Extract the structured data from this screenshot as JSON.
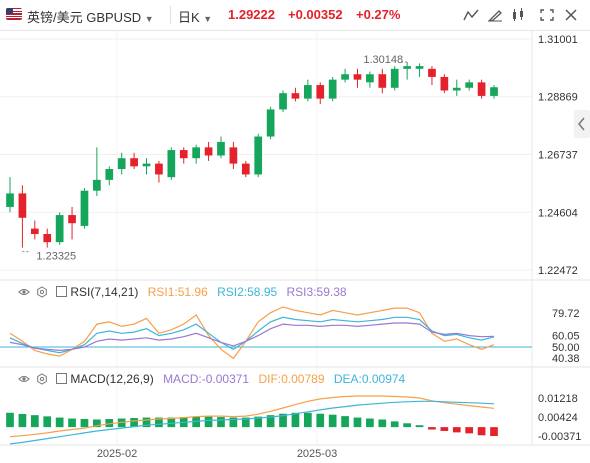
{
  "header": {
    "symbol": "英镑/美元 GBPUSD",
    "timeframe": "日K",
    "last_price": "1.29222",
    "change": "+0.00352",
    "change_pct": "+0.27%"
  },
  "colors": {
    "up": "#15a55b",
    "down": "#e4222b",
    "rsi1": "#f5a04a",
    "rsi2": "#3fb5d8",
    "rsi3": "#9a78d2",
    "diff": "#f5a04a",
    "dea": "#3fb5d8"
  },
  "icons": [
    "flag-icon",
    "dropdown-caret-icon",
    "indicator-icon",
    "draw-icon",
    "settings-icon",
    "candlestick-type-icon",
    "fullscreen-icon",
    "close-icon",
    "collapse-panel-icon",
    "eye-icon",
    "gear-icon"
  ],
  "price_axis": [
    "1.31001",
    "1.28869",
    "1.26737",
    "1.24604",
    "1.22472"
  ],
  "annotations": {
    "high": "1.30148",
    "low": "1.23325"
  },
  "x_axis": [
    "2025-02",
    "2025-03"
  ],
  "rsi": {
    "title": "RSI(7,14,21)",
    "rsi1": "RSI1:51.96",
    "rsi2": "RSI2:58.95",
    "rsi3": "RSI3:59.38",
    "axis": [
      "79.72",
      "60.05",
      "50.00",
      "40.38"
    ]
  },
  "macd": {
    "title": "MACD(12,26,9)",
    "macd": "MACD:-0.00371",
    "dif": "DIF:0.00789",
    "dea": "DEA:0.00974",
    "axis": [
      "0.01218",
      "0.00424",
      "-0.00371"
    ]
  },
  "chart_data": [
    {
      "type": "candlestick",
      "title": "",
      "ylim": [
        1.2247,
        1.31
      ],
      "series": [
        {
          "values": [
            [
              1.248,
              1.259,
              1.246,
              1.253
            ],
            [
              1.253,
              1.256,
              1.233,
              1.244
            ],
            [
              1.24,
              1.243,
              1.236,
              1.238
            ],
            [
              1.238,
              1.24,
              1.233,
              1.235
            ],
            [
              1.235,
              1.246,
              1.234,
              1.245
            ],
            [
              1.245,
              1.248,
              1.236,
              1.242
            ],
            [
              1.241,
              1.255,
              1.24,
              1.254
            ],
            [
              1.254,
              1.27,
              1.252,
              1.258
            ],
            [
              1.258,
              1.263,
              1.256,
              1.262
            ],
            [
              1.262,
              1.268,
              1.26,
              1.266
            ],
            [
              1.266,
              1.268,
              1.262,
              1.263
            ],
            [
              1.263,
              1.266,
              1.26,
              1.264
            ],
            [
              1.264,
              1.265,
              1.257,
              1.26
            ],
            [
              1.259,
              1.27,
              1.258,
              1.269
            ],
            [
              1.269,
              1.27,
              1.264,
              1.266
            ],
            [
              1.266,
              1.271,
              1.264,
              1.27
            ],
            [
              1.27,
              1.272,
              1.265,
              1.267
            ],
            [
              1.267,
              1.274,
              1.266,
              1.272
            ],
            [
              1.27,
              1.272,
              1.262,
              1.264
            ],
            [
              1.264,
              1.265,
              1.259,
              1.26
            ],
            [
              1.26,
              1.275,
              1.259,
              1.274
            ],
            [
              1.274,
              1.285,
              1.273,
              1.284
            ],
            [
              1.284,
              1.291,
              1.283,
              1.29
            ],
            [
              1.29,
              1.292,
              1.287,
              1.288
            ],
            [
              1.288,
              1.295,
              1.287,
              1.293
            ],
            [
              1.293,
              1.294,
              1.286,
              1.288
            ],
            [
              1.288,
              1.296,
              1.287,
              1.295
            ],
            [
              1.295,
              1.299,
              1.294,
              1.297
            ],
            [
              1.297,
              1.299,
              1.292,
              1.295
            ],
            [
              1.294,
              1.298,
              1.292,
              1.297
            ],
            [
              1.297,
              1.299,
              1.29,
              1.292
            ],
            [
              1.292,
              1.3,
              1.291,
              1.299
            ],
            [
              1.299,
              1.3015,
              1.295,
              1.3
            ],
            [
              1.299,
              1.301,
              1.296,
              1.3
            ],
            [
              1.299,
              1.3,
              1.293,
              1.296
            ],
            [
              1.296,
              1.297,
              1.29,
              1.291
            ],
            [
              1.291,
              1.295,
              1.289,
              1.292
            ],
            [
              1.292,
              1.295,
              1.291,
              1.294
            ],
            [
              1.294,
              1.295,
              1.288,
              1.289
            ],
            [
              1.289,
              1.293,
              1.288,
              1.2922
            ]
          ]
        }
      ]
    },
    {
      "type": "line",
      "title": "RSI(7,14,21)",
      "ylim": [
        35,
        95
      ],
      "series": [
        {
          "name": "RSI1",
          "values": [
            62,
            55,
            47,
            44,
            42,
            48,
            55,
            70,
            72,
            68,
            70,
            75,
            62,
            65,
            70,
            78,
            60,
            48,
            40,
            55,
            72,
            80,
            85,
            82,
            80,
            78,
            82,
            80,
            78,
            80,
            82,
            84,
            84,
            80,
            62,
            55,
            57,
            52,
            48,
            52
          ]
        },
        {
          "name": "RSI2",
          "values": [
            58,
            53,
            49,
            47,
            45,
            48,
            52,
            62,
            64,
            62,
            63,
            66,
            60,
            62,
            65,
            70,
            62,
            54,
            48,
            55,
            64,
            72,
            76,
            74,
            73,
            72,
            74,
            73,
            72,
            73,
            74,
            76,
            76,
            74,
            64,
            60,
            61,
            58,
            56,
            58.95
          ]
        },
        {
          "name": "RSI3",
          "values": [
            54,
            52,
            49,
            48,
            47,
            48,
            50,
            55,
            57,
            56,
            57,
            58,
            56,
            57,
            59,
            62,
            58,
            54,
            51,
            55,
            60,
            66,
            70,
            69,
            69,
            68,
            69,
            69,
            68,
            69,
            70,
            71,
            71,
            70,
            63,
            61,
            62,
            60,
            59,
            59.38
          ]
        }
      ]
    },
    {
      "type": "bar",
      "title": "MACD(12,26,9)",
      "series": [
        {
          "name": "MACD",
          "values": [
            0.006,
            0.0055,
            0.005,
            0.0045,
            0.004,
            0.0036,
            0.0034,
            0.0032,
            0.0034,
            0.0036,
            0.0038,
            0.004,
            0.004,
            0.004,
            0.0042,
            0.0044,
            0.0044,
            0.0042,
            0.004,
            0.004,
            0.0044,
            0.005,
            0.0056,
            0.006,
            0.006,
            0.0056,
            0.0052,
            0.0046,
            0.004,
            0.0036,
            0.0032,
            0.0024,
            0.0016,
            0.0008,
            -0.001,
            -0.0016,
            -0.0022,
            -0.0026,
            -0.0034,
            -0.00371
          ]
        },
        {
          "name": "DIF",
          "values": [
            -0.004,
            -0.0036,
            -0.003,
            -0.0024,
            -0.0016,
            -0.001,
            -0.0004,
            0.0006,
            0.0014,
            0.002,
            0.0026,
            0.003,
            0.0034,
            0.0036,
            0.004,
            0.0044,
            0.0046,
            0.0046,
            0.0044,
            0.0046,
            0.0054,
            0.0066,
            0.008,
            0.0094,
            0.0108,
            0.0118,
            0.0124,
            0.0128,
            0.013,
            0.013,
            0.013,
            0.0128,
            0.0126,
            0.0122,
            0.011,
            0.0102,
            0.0096,
            0.009,
            0.0084,
            0.00789
          ]
        },
        {
          "name": "DEA",
          "values": [
            -0.007,
            -0.0064,
            -0.0056,
            -0.0048,
            -0.004,
            -0.0032,
            -0.0024,
            -0.0016,
            -0.001,
            -0.0004,
            0.0002,
            0.0008,
            0.0012,
            0.0016,
            0.002,
            0.0024,
            0.0028,
            0.003,
            0.0032,
            0.0034,
            0.0038,
            0.0042,
            0.0048,
            0.0056,
            0.0064,
            0.0072,
            0.008,
            0.0086,
            0.0092,
            0.0096,
            0.01,
            0.0104,
            0.0106,
            0.0108,
            0.0108,
            0.0106,
            0.0104,
            0.0102,
            0.01,
            0.00974
          ]
        }
      ]
    }
  ]
}
